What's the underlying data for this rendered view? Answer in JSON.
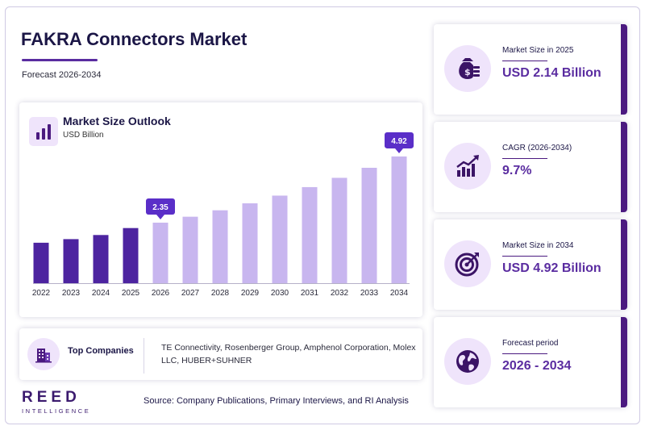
{
  "header": {
    "title": "FAKRA Connectors Market",
    "subtitle": "Forecast 2026-2034"
  },
  "chart_data": {
    "type": "bar",
    "title": "Market Size Outlook",
    "unit": "USD Billion",
    "categories": [
      "2022",
      "2023",
      "2024",
      "2025",
      "2026",
      "2027",
      "2028",
      "2029",
      "2030",
      "2031",
      "2032",
      "2033",
      "2034"
    ],
    "values": [
      1.57,
      1.71,
      1.87,
      2.14,
      2.35,
      2.58,
      2.83,
      3.1,
      3.4,
      3.73,
      4.09,
      4.48,
      4.92
    ],
    "historical_count": 4,
    "ylim": [
      0,
      5.2
    ],
    "callouts": [
      {
        "index": 4,
        "label": "2.35"
      },
      {
        "index": 12,
        "label": "4.92"
      }
    ],
    "colors": {
      "historical": "#4d24a0",
      "forecast": "#c8b6ef",
      "callout": "#5a2ec8"
    },
    "grid": false,
    "legend": "none"
  },
  "companies": {
    "label": "Top Companies",
    "list": "TE Connectivity, Rosenberger Group, Amphenol Corporation, Molex LLC, HUBER+SUHNER"
  },
  "kpis": [
    {
      "label": "Market Size in 2025",
      "value": "USD 2.14 Billion",
      "icon": "money-bag-icon"
    },
    {
      "label": "CAGR (2026-2034)",
      "value": "9.7%",
      "icon": "growth-chart-icon"
    },
    {
      "label": "Market Size in 2034",
      "value": "USD 4.92 Billion",
      "icon": "target-icon"
    },
    {
      "label": "Forecast period",
      "value": "2026 - 2034",
      "icon": "globe-icon"
    }
  ],
  "brand": {
    "name": "REED",
    "tagline": "INTELLIGENCE"
  },
  "source": "Source: Company Publications, Primary Interviews, and RI Analysis",
  "accent": "#5a2ca0"
}
